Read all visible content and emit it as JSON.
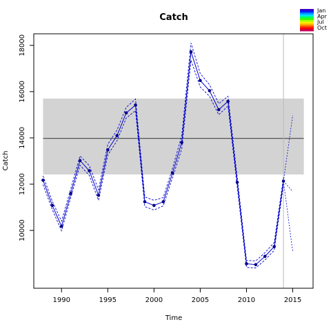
{
  "chart_data": {
    "type": "line",
    "title": "Catch",
    "xlabel": "Time",
    "ylabel": "Catch",
    "xlim": [
      1987,
      2017.2
    ],
    "ylim": [
      7500,
      18500
    ],
    "x_ticks": [
      1990,
      1995,
      2000,
      2005,
      2010,
      2015
    ],
    "y_ticks": [
      10000,
      12000,
      14000,
      16000,
      18000
    ],
    "grid": false,
    "reference_band": {
      "min": 12420,
      "max": 15700,
      "x_range": [
        1988,
        2016.2
      ],
      "color": "#d3d3d3"
    },
    "reference_line": {
      "value": 13980,
      "color": "#555555"
    },
    "terminal_year_line": {
      "x": 2014,
      "color": "#bbbbbb"
    },
    "series": [
      {
        "color": "#0000cc",
        "x": [
          1988,
          1989,
          1990,
          1991,
          1992,
          1993,
          1994,
          1995,
          1996,
          1997,
          1998,
          1999,
          2000,
          2001,
          2002,
          2003,
          2004,
          2005,
          2006,
          2007,
          2008,
          2009,
          2010,
          2011,
          2012,
          2013,
          2014
        ],
        "values": [
          12170,
          11080,
          10180,
          11600,
          13020,
          12580,
          11520,
          13480,
          14100,
          15080,
          15420,
          11240,
          11080,
          11240,
          12480,
          13800,
          17720,
          16480,
          16040,
          15220,
          15580,
          12080,
          8560,
          8520,
          8880,
          9300,
          12130
        ],
        "upper": [
          12360,
          11260,
          10400,
          11800,
          13220,
          12800,
          11760,
          13720,
          14340,
          15320,
          15680,
          11450,
          11300,
          11420,
          12680,
          14100,
          18100,
          16780,
          16300,
          15480,
          15800,
          12300,
          8700,
          8680,
          9040,
          9480,
          12280
        ],
        "lower": [
          11980,
          10900,
          9980,
          11420,
          12820,
          12380,
          11300,
          13260,
          13880,
          14860,
          15180,
          11030,
          10880,
          11060,
          12280,
          13520,
          17360,
          16200,
          15800,
          15000,
          15380,
          11880,
          8400,
          8380,
          8720,
          9140,
          11980
        ]
      }
    ],
    "projection": {
      "x": [
        2014,
        2015
      ],
      "upper": [
        12130,
        14980
      ],
      "central": [
        12130,
        11680
      ],
      "lower": [
        12130,
        9080
      ]
    },
    "legend": {
      "position": "top-right",
      "entries": [
        "Jan",
        "Apr",
        "Jul",
        "Oct"
      ],
      "colors": [
        "#3a00cc",
        "#0022ff",
        "#0099ff",
        "#00e0ff",
        "#00ff66",
        "#33ff00",
        "#aaff00",
        "#ffee00",
        "#ffaa00",
        "#ff5500",
        "#ff0000",
        "#cc0055"
      ]
    }
  }
}
